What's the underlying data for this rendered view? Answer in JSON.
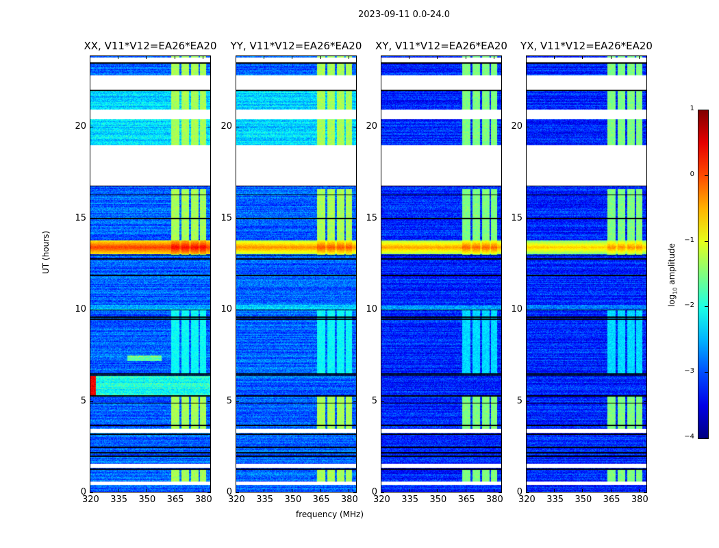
{
  "figure": {
    "suptitle": "2023-09-11 0.0-24.0",
    "xlabel": "frequency (MHz)",
    "ylabel": "UT (hours)",
    "colorbar_label_prefix": "log",
    "colorbar_label_sub": "10",
    "colorbar_label_suffix": " amplitude"
  },
  "chart_data": {
    "type": "heatmap",
    "title": "2023-09-11 0.0-24.0",
    "xlabel": "frequency (MHz)",
    "ylabel": "UT (hours)",
    "xlim": [
      320,
      384.4
    ],
    "ylim": [
      0,
      23.9
    ],
    "xticks": [
      320,
      335,
      350,
      365,
      380
    ],
    "yticks": [
      0,
      5,
      10,
      15,
      20
    ],
    "colormap": "jet",
    "colorbar": {
      "label": "log10 amplitude",
      "range": [
        -4,
        1
      ],
      "ticks": [
        1,
        0,
        -1,
        -2,
        -3,
        -4
      ]
    },
    "panels": [
      {
        "title": "XX, V11*V12=EA26*EA20",
        "base_level": -2.9,
        "band_level": 0.1
      },
      {
        "title": "YY, V11*V12=EA26*EA20",
        "base_level": -2.9,
        "band_level": -0.3
      },
      {
        "title": "XY, V11*V12=EA26*EA20",
        "base_level": -3.2,
        "band_level": -0.4
      },
      {
        "title": "YX, V11*V12=EA26*EA20",
        "base_level": -3.2,
        "band_level": -0.6
      }
    ],
    "flagged_gaps_hours": [
      [
        0.42,
        0.6
      ],
      [
        1.35,
        1.6
      ],
      [
        3.26,
        3.52
      ],
      [
        16.8,
        19.0
      ],
      [
        20.45,
        20.95
      ],
      [
        22.05,
        22.85
      ],
      [
        23.55,
        23.8
      ]
    ],
    "strong_band_hours": [
      13.05,
      13.8
    ],
    "rfi_channels_mhz": [
      [
        363,
        367.5
      ],
      [
        368.5,
        372.5
      ],
      [
        373.5,
        377.5
      ],
      [
        378.5,
        381.5
      ]
    ],
    "rfi_active_hours": [
      [
        0.6,
        1.3
      ],
      [
        3.5,
        5.3
      ],
      [
        6.5,
        10
      ],
      [
        13.0,
        16.6
      ],
      [
        19.0,
        23.9
      ]
    ]
  }
}
